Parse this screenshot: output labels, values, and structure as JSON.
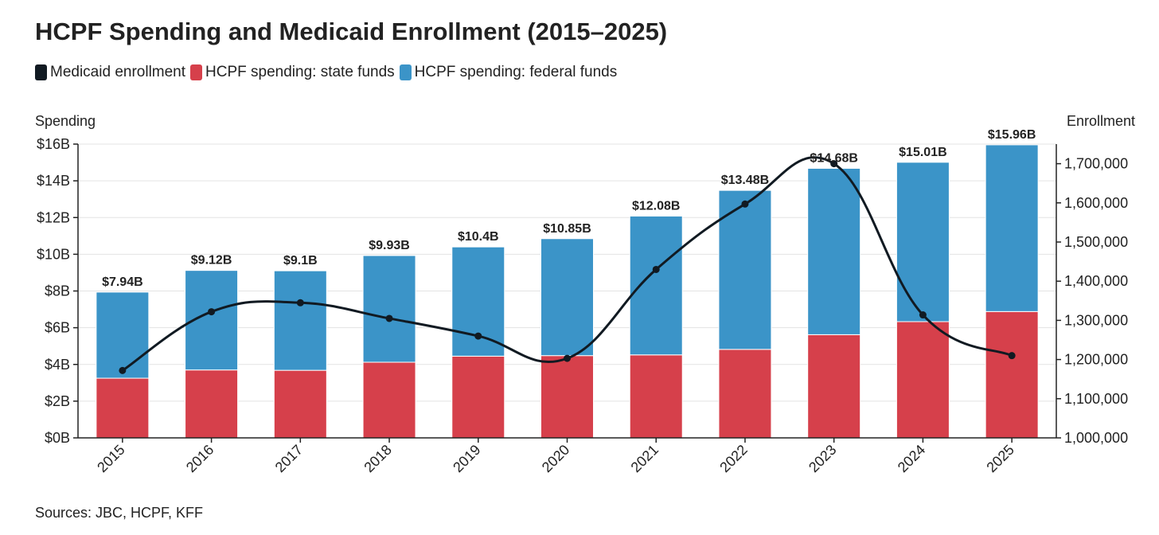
{
  "chart_data": {
    "type": "bar",
    "title": "HCPF Spending and Medicaid Enrollment (2015–2025)",
    "categories": [
      "2015",
      "2016",
      "2017",
      "2018",
      "2019",
      "2020",
      "2021",
      "2022",
      "2023",
      "2024",
      "2025"
    ],
    "series": [
      {
        "name": "HCPF spending: state funds",
        "kind": "bar",
        "stack": "spending",
        "axis": "left",
        "color": "#d6404b",
        "values": [
          3.25,
          3.7,
          3.68,
          4.12,
          4.45,
          4.48,
          4.52,
          4.82,
          5.62,
          6.33,
          6.88
        ]
      },
      {
        "name": "HCPF spending: federal funds",
        "kind": "bar",
        "stack": "spending",
        "axis": "left",
        "color": "#3b94c8",
        "values": [
          4.69,
          5.42,
          5.42,
          5.81,
          5.95,
          6.37,
          7.56,
          8.66,
          9.06,
          8.68,
          9.08
        ]
      },
      {
        "name": "Medicaid enrollment",
        "kind": "line",
        "axis": "right",
        "color": "#111a22",
        "values": [
          1172000,
          1322000,
          1345000,
          1305000,
          1260000,
          1203000,
          1430000,
          1597000,
          1700000,
          1314000,
          1210000
        ]
      }
    ],
    "totals_labels": [
      "$7.94B",
      "$9.12B",
      "$9.1B",
      "$9.93B",
      "$10.4B",
      "$10.85B",
      "$12.08B",
      "$13.48B",
      "$14.68B",
      "$15.01B",
      "$15.96B"
    ],
    "y_left": {
      "label": "Spending",
      "ylim": [
        0,
        16
      ],
      "ticks": [
        0,
        2,
        4,
        6,
        8,
        10,
        12,
        14,
        16
      ],
      "tick_labels": [
        "$0B",
        "$2B",
        "$4B",
        "$6B",
        "$8B",
        "$10B",
        "$12B",
        "$14B",
        "$16B"
      ]
    },
    "y_right": {
      "label": "Enrollment",
      "ylim": [
        1000000,
        1750000
      ],
      "ticks": [
        1000000,
        1100000,
        1200000,
        1300000,
        1400000,
        1500000,
        1600000,
        1700000
      ],
      "tick_labels": [
        "1,000,000",
        "1,100,000",
        "1,200,000",
        "1,300,000",
        "1,400,000",
        "1,500,000",
        "1,600,000",
        "1,700,000"
      ]
    },
    "legend": {
      "placement": "top-left",
      "entries": [
        "Medicaid enrollment",
        "HCPF spending: state funds",
        "HCPF spending: federal funds"
      ]
    },
    "grid": true,
    "source": "Sources: JBC, HCPF, KFF"
  }
}
